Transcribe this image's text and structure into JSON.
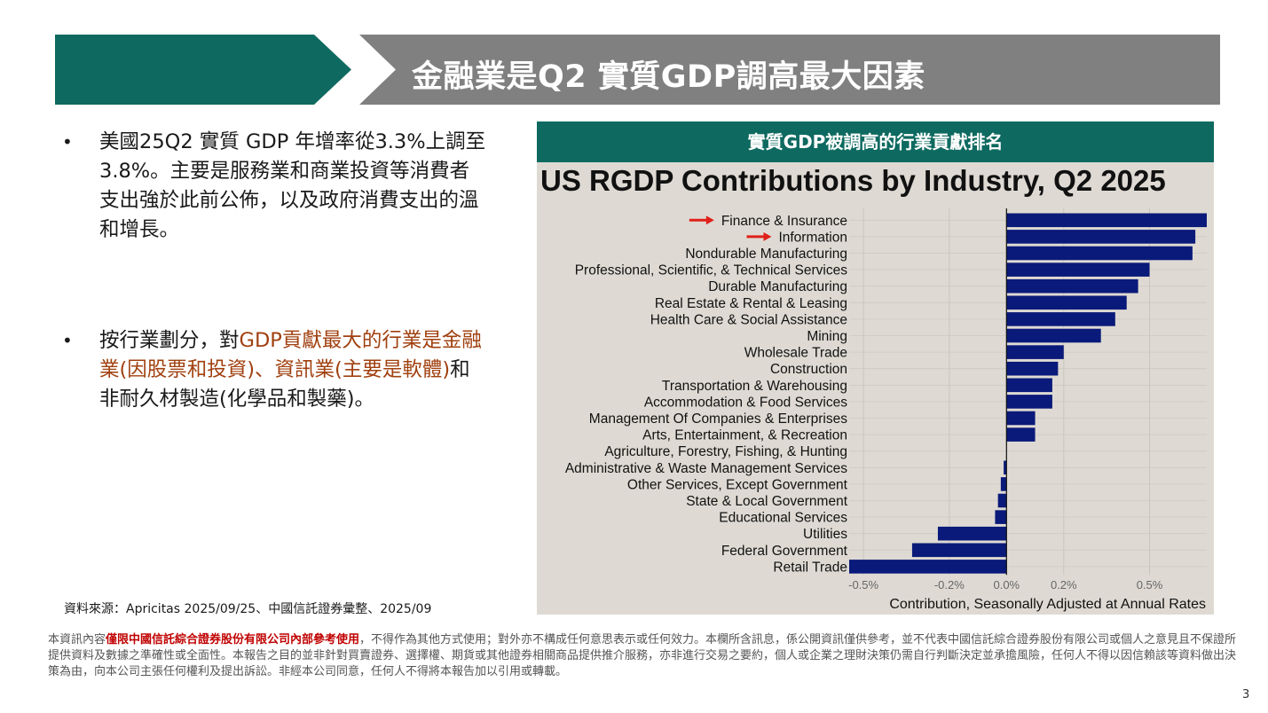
{
  "header": {
    "title": "金融業是Q2 實質GDP調高最大因素",
    "color_left": "#0e6a60",
    "color_right": "#808080"
  },
  "bullets": [
    {
      "parts": [
        {
          "text": "美國25Q2 實質 GDP 年增率從3.3%上調至3.8%。主要是服務業和商業投資等消費者支出強於此前公佈，以及政府消費支出的溫和增長。",
          "highlight": false
        }
      ]
    },
    {
      "parts": [
        {
          "text": "按行業劃分，對",
          "highlight": false
        },
        {
          "text": "GDP貢獻最大的行業是金融業(因股票和投資)、資訊業(主要是軟體)",
          "highlight": true
        },
        {
          "text": "和非耐久材製造(化學品和製藥)。",
          "highlight": false
        }
      ]
    }
  ],
  "source_note": "資料來源：Apricitas 2025/09/25、中國信託證券彙整、2025/09",
  "chart_caption": "實質GDP被調高的行業貢獻排名",
  "chart_data": {
    "type": "bar",
    "orientation": "horizontal",
    "title": "US RGDP Contributions by Industry, Q2 2025",
    "xlabel": "Contribution, Seasonally Adjusted at Annual Rates",
    "ylabel": "",
    "xlim": [
      -0.55,
      0.7
    ],
    "xticks": [
      -0.5,
      -0.2,
      0.0,
      0.2,
      0.5
    ],
    "xtick_labels": [
      "-0.5%",
      "-0.2%",
      "0.0%",
      "0.2%",
      "0.5%"
    ],
    "bar_color": "#0a1a7a",
    "background": "#dedad3",
    "grid": true,
    "categories": [
      "Finance & Insurance",
      "Information",
      "Nondurable Manufacturing",
      "Professional, Scientific, & Technical Services",
      "Durable Manufacturing",
      "Real Estate & Rental & Leasing",
      "Health Care & Social Assistance",
      "Mining",
      "Wholesale Trade",
      "Construction",
      "Transportation & Warehousing",
      "Accommodation & Food Services",
      "Management Of Companies & Enterprises",
      "Arts, Entertainment, & Recreation",
      "Agriculture, Forestry, Fishing, & Hunting",
      "Administrative & Waste Management Services",
      "Other Services, Except Government",
      "State & Local Government",
      "Educational Services",
      "Utilities",
      "Federal Government",
      "Retail Trade"
    ],
    "values": [
      0.7,
      0.66,
      0.65,
      0.5,
      0.46,
      0.42,
      0.38,
      0.33,
      0.2,
      0.18,
      0.16,
      0.16,
      0.1,
      0.1,
      0.0,
      -0.01,
      -0.02,
      -0.03,
      -0.04,
      -0.24,
      -0.33,
      -0.55
    ],
    "highlighted_categories": [
      "Finance & Insurance",
      "Information"
    ],
    "highlight_color": "#e0201a"
  },
  "disclaimer": {
    "prefix": "本資訊內容",
    "emphasis": "僅限中國信託綜合證券股份有限公司內部參考使用",
    "body": "，不得作為其他方式使用；對外亦不構成任何意思表示或任何效力。本欄所含訊息，係公開資訊僅供參考，並不代表中國信託綜合證券股份有限公司或個人之意見且不保證所提供資料及數據之準確性或全面性。本報告之目的並非針對買賣證券、選擇權、期貨或其他證券相關商品提供推介服務，亦非進行交易之要約，個人或企業之理財決策仍需自行判斷決定並承擔風險，任何人不得以因信賴該等資料做出決策為由，向本公司主張任何權利及提出訴訟。非經本公司同意，任何人不得將本報告加以引用或轉載。"
  },
  "page_number": "3"
}
